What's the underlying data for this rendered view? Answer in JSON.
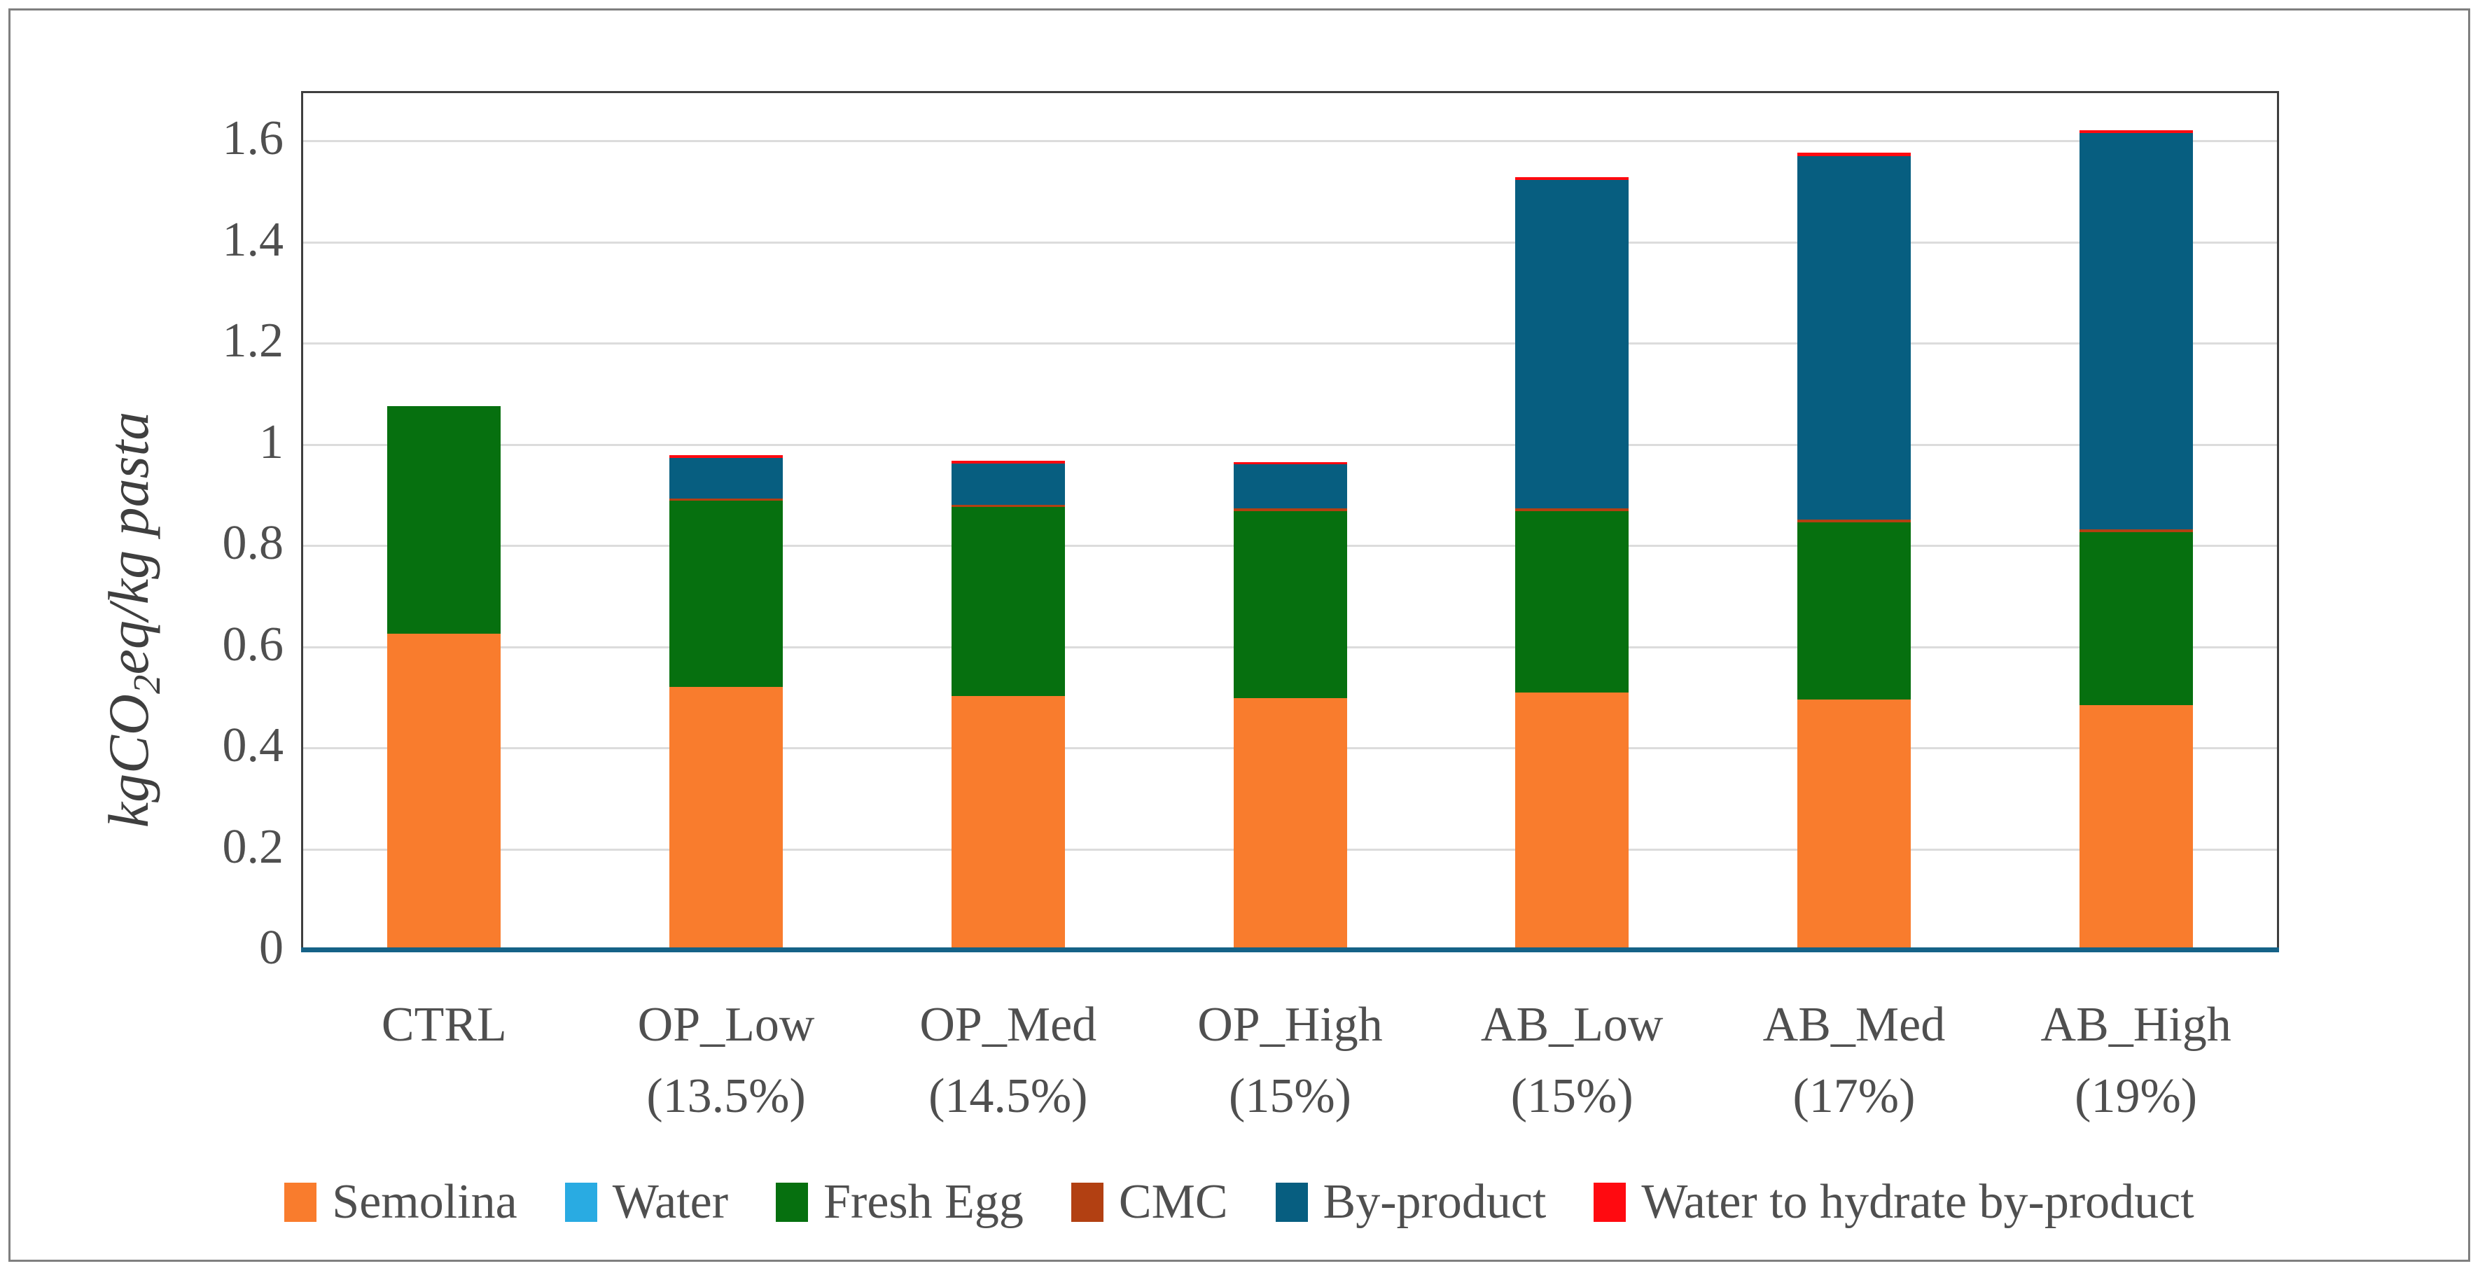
{
  "chart_data": {
    "type": "bar",
    "stacked": true,
    "title": "",
    "ylabel": "kgCO2eq/kg pasta",
    "ylabel_pre": "kgCO",
    "ylabel_sub": "2",
    "ylabel_post": "eq/kg pasta",
    "ylim": [
      0,
      1.7
    ],
    "y_major_unit": 0.2,
    "grid": "horizontal",
    "legend_position": "bottom",
    "y_ticks": [
      {
        "label": "1.6",
        "value": 1.6
      },
      {
        "label": "1.4",
        "value": 1.4
      },
      {
        "label": "1.2",
        "value": 1.2
      },
      {
        "label": "1",
        "value": 1.0
      },
      {
        "label": "0.8",
        "value": 0.8
      },
      {
        "label": "0.6",
        "value": 0.6
      },
      {
        "label": "0.4",
        "value": 0.4
      },
      {
        "label": "0.2",
        "value": 0.2
      },
      {
        "label": "0",
        "value": 0.0
      }
    ],
    "categories": [
      "CTRL",
      "OP_Low",
      "OP_Med",
      "OP_High",
      "AB_Low",
      "AB_Med",
      "AB_High"
    ],
    "category_sublabels": [
      "",
      "(13.5%)",
      "(14.5%)",
      "(15%)",
      "(15%)",
      "(17%)",
      "(19%)"
    ],
    "series": [
      {
        "name": "Semolina",
        "color": "#F97C2D",
        "values": [
          0.625,
          0.52,
          0.502,
          0.498,
          0.51,
          0.495,
          0.485
        ]
      },
      {
        "name": "Water",
        "color": "#29ABE2",
        "values": [
          0,
          0,
          0,
          0,
          0,
          0,
          0
        ]
      },
      {
        "name": "Fresh Egg",
        "color": "#06700F",
        "values": [
          0.45,
          0.368,
          0.374,
          0.37,
          0.358,
          0.351,
          0.342
        ]
      },
      {
        "name": "CMC",
        "color": "#B24012",
        "values": [
          0,
          0.005,
          0.004,
          0.005,
          0.005,
          0.005,
          0.005
        ]
      },
      {
        "name": "By-product",
        "color": "#075E80",
        "values": [
          0,
          0.08,
          0.082,
          0.087,
          0.649,
          0.719,
          0.783
        ]
      },
      {
        "name": "Water to hydrate by-product",
        "color": "#FF0A10",
        "values": [
          0,
          0.005,
          0.005,
          0.005,
          0.006,
          0.006,
          0.006
        ]
      }
    ],
    "totals_approx": [
      1.075,
      0.978,
      0.967,
      0.965,
      1.528,
      1.576,
      1.621
    ],
    "colors": {
      "gridline": "#DCDCDC",
      "plot_border": "#3F3F3F",
      "x_axis_line": "#156287",
      "text": "#4F4F4F",
      "outer_border": "#7F7F7F",
      "background": "#FFFFFF"
    }
  }
}
